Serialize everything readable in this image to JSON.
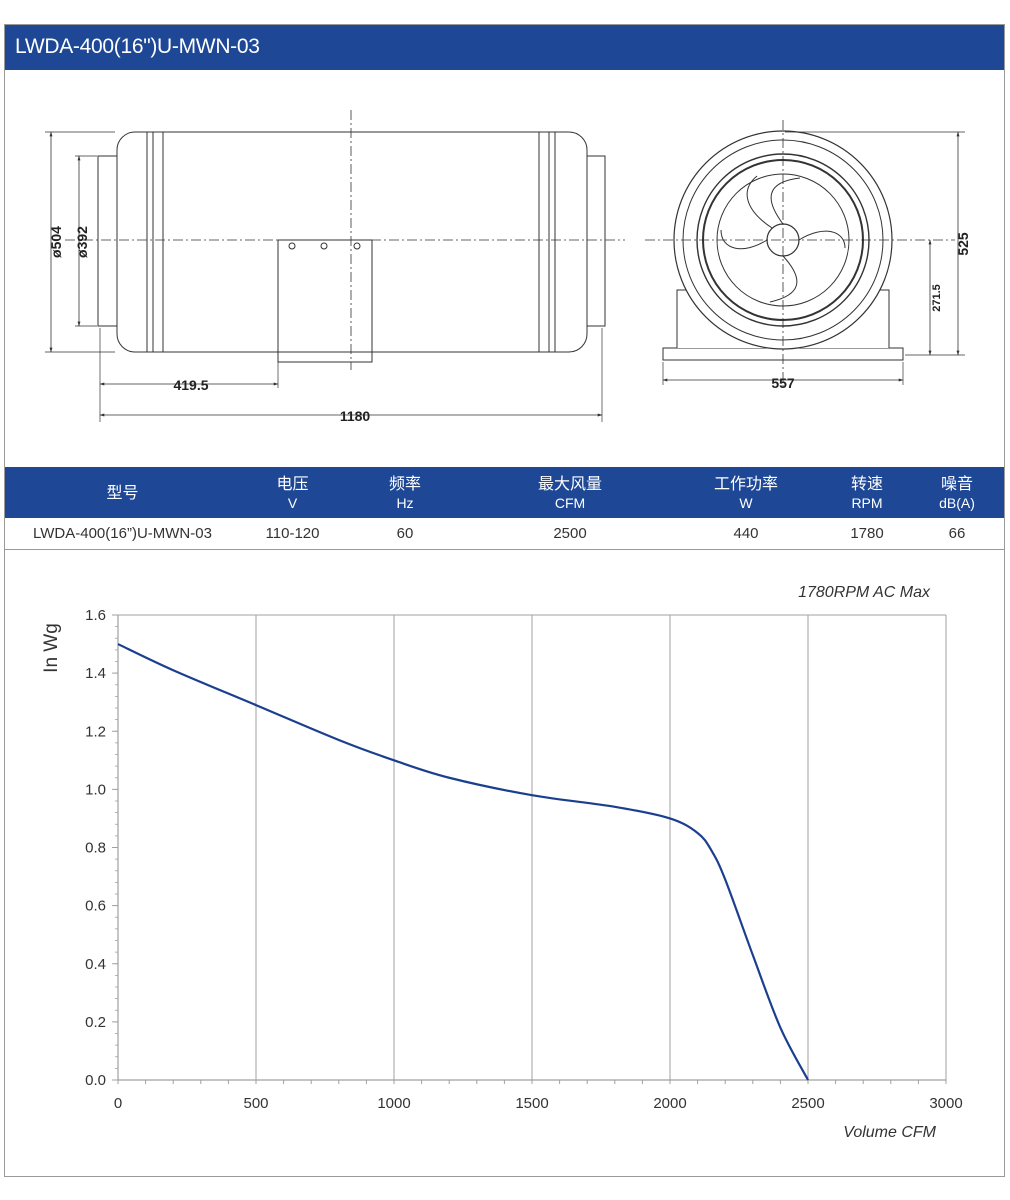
{
  "title": "LWDA-400(16\")U-MWN-03",
  "drawing": {
    "dims": {
      "outer_dia": "ø504",
      "inner_dia": "ø392",
      "offset": "419.5",
      "length": "1180",
      "height": "525",
      "center_height": "271.5",
      "width": "557"
    }
  },
  "spec": {
    "headers": [
      {
        "cn": "型号",
        "en": ""
      },
      {
        "cn": "电压",
        "en": "V"
      },
      {
        "cn": "频率",
        "en": "Hz"
      },
      {
        "cn": "最大风量",
        "en": "CFM"
      },
      {
        "cn": "工作功率",
        "en": "W"
      },
      {
        "cn": "转速",
        "en": "RPM"
      },
      {
        "cn": "噪音",
        "en": "dB(A)"
      }
    ],
    "row": [
      "LWDA-400(16”)U-MWN-03",
      "110-120",
      "60",
      "2500",
      "440",
      "1780",
      "66"
    ]
  },
  "colors": {
    "brand": "#1e4796",
    "curve": "#1b3f8f",
    "grid": "#a0a0a0"
  },
  "chart_data": {
    "type": "line",
    "title": "1780RPM AC Max",
    "xlabel": "Volume CFM",
    "ylabel": "In Wg",
    "xlim": [
      0,
      3000
    ],
    "ylim": [
      0,
      1.6
    ],
    "xticks": [
      0,
      500,
      1000,
      1500,
      2000,
      2500,
      3000
    ],
    "yticks": [
      0.0,
      0.2,
      0.4,
      0.6,
      0.8,
      1.0,
      1.2,
      1.4,
      1.6
    ],
    "ytick_labels": [
      "0.0",
      "0.2",
      "0.4",
      "0.6",
      "0.8",
      "1.0",
      "1.2",
      "1.4",
      "1.6"
    ],
    "grid": "vertical",
    "series": [
      {
        "x": [
          0,
          200,
          500,
          800,
          1000,
          1200,
          1500,
          1800,
          2000,
          2100,
          2150,
          2200,
          2300,
          2400,
          2500
        ],
        "values": [
          1.5,
          1.41,
          1.29,
          1.17,
          1.1,
          1.04,
          0.98,
          0.94,
          0.9,
          0.85,
          0.79,
          0.69,
          0.43,
          0.18,
          0.0
        ]
      }
    ]
  }
}
